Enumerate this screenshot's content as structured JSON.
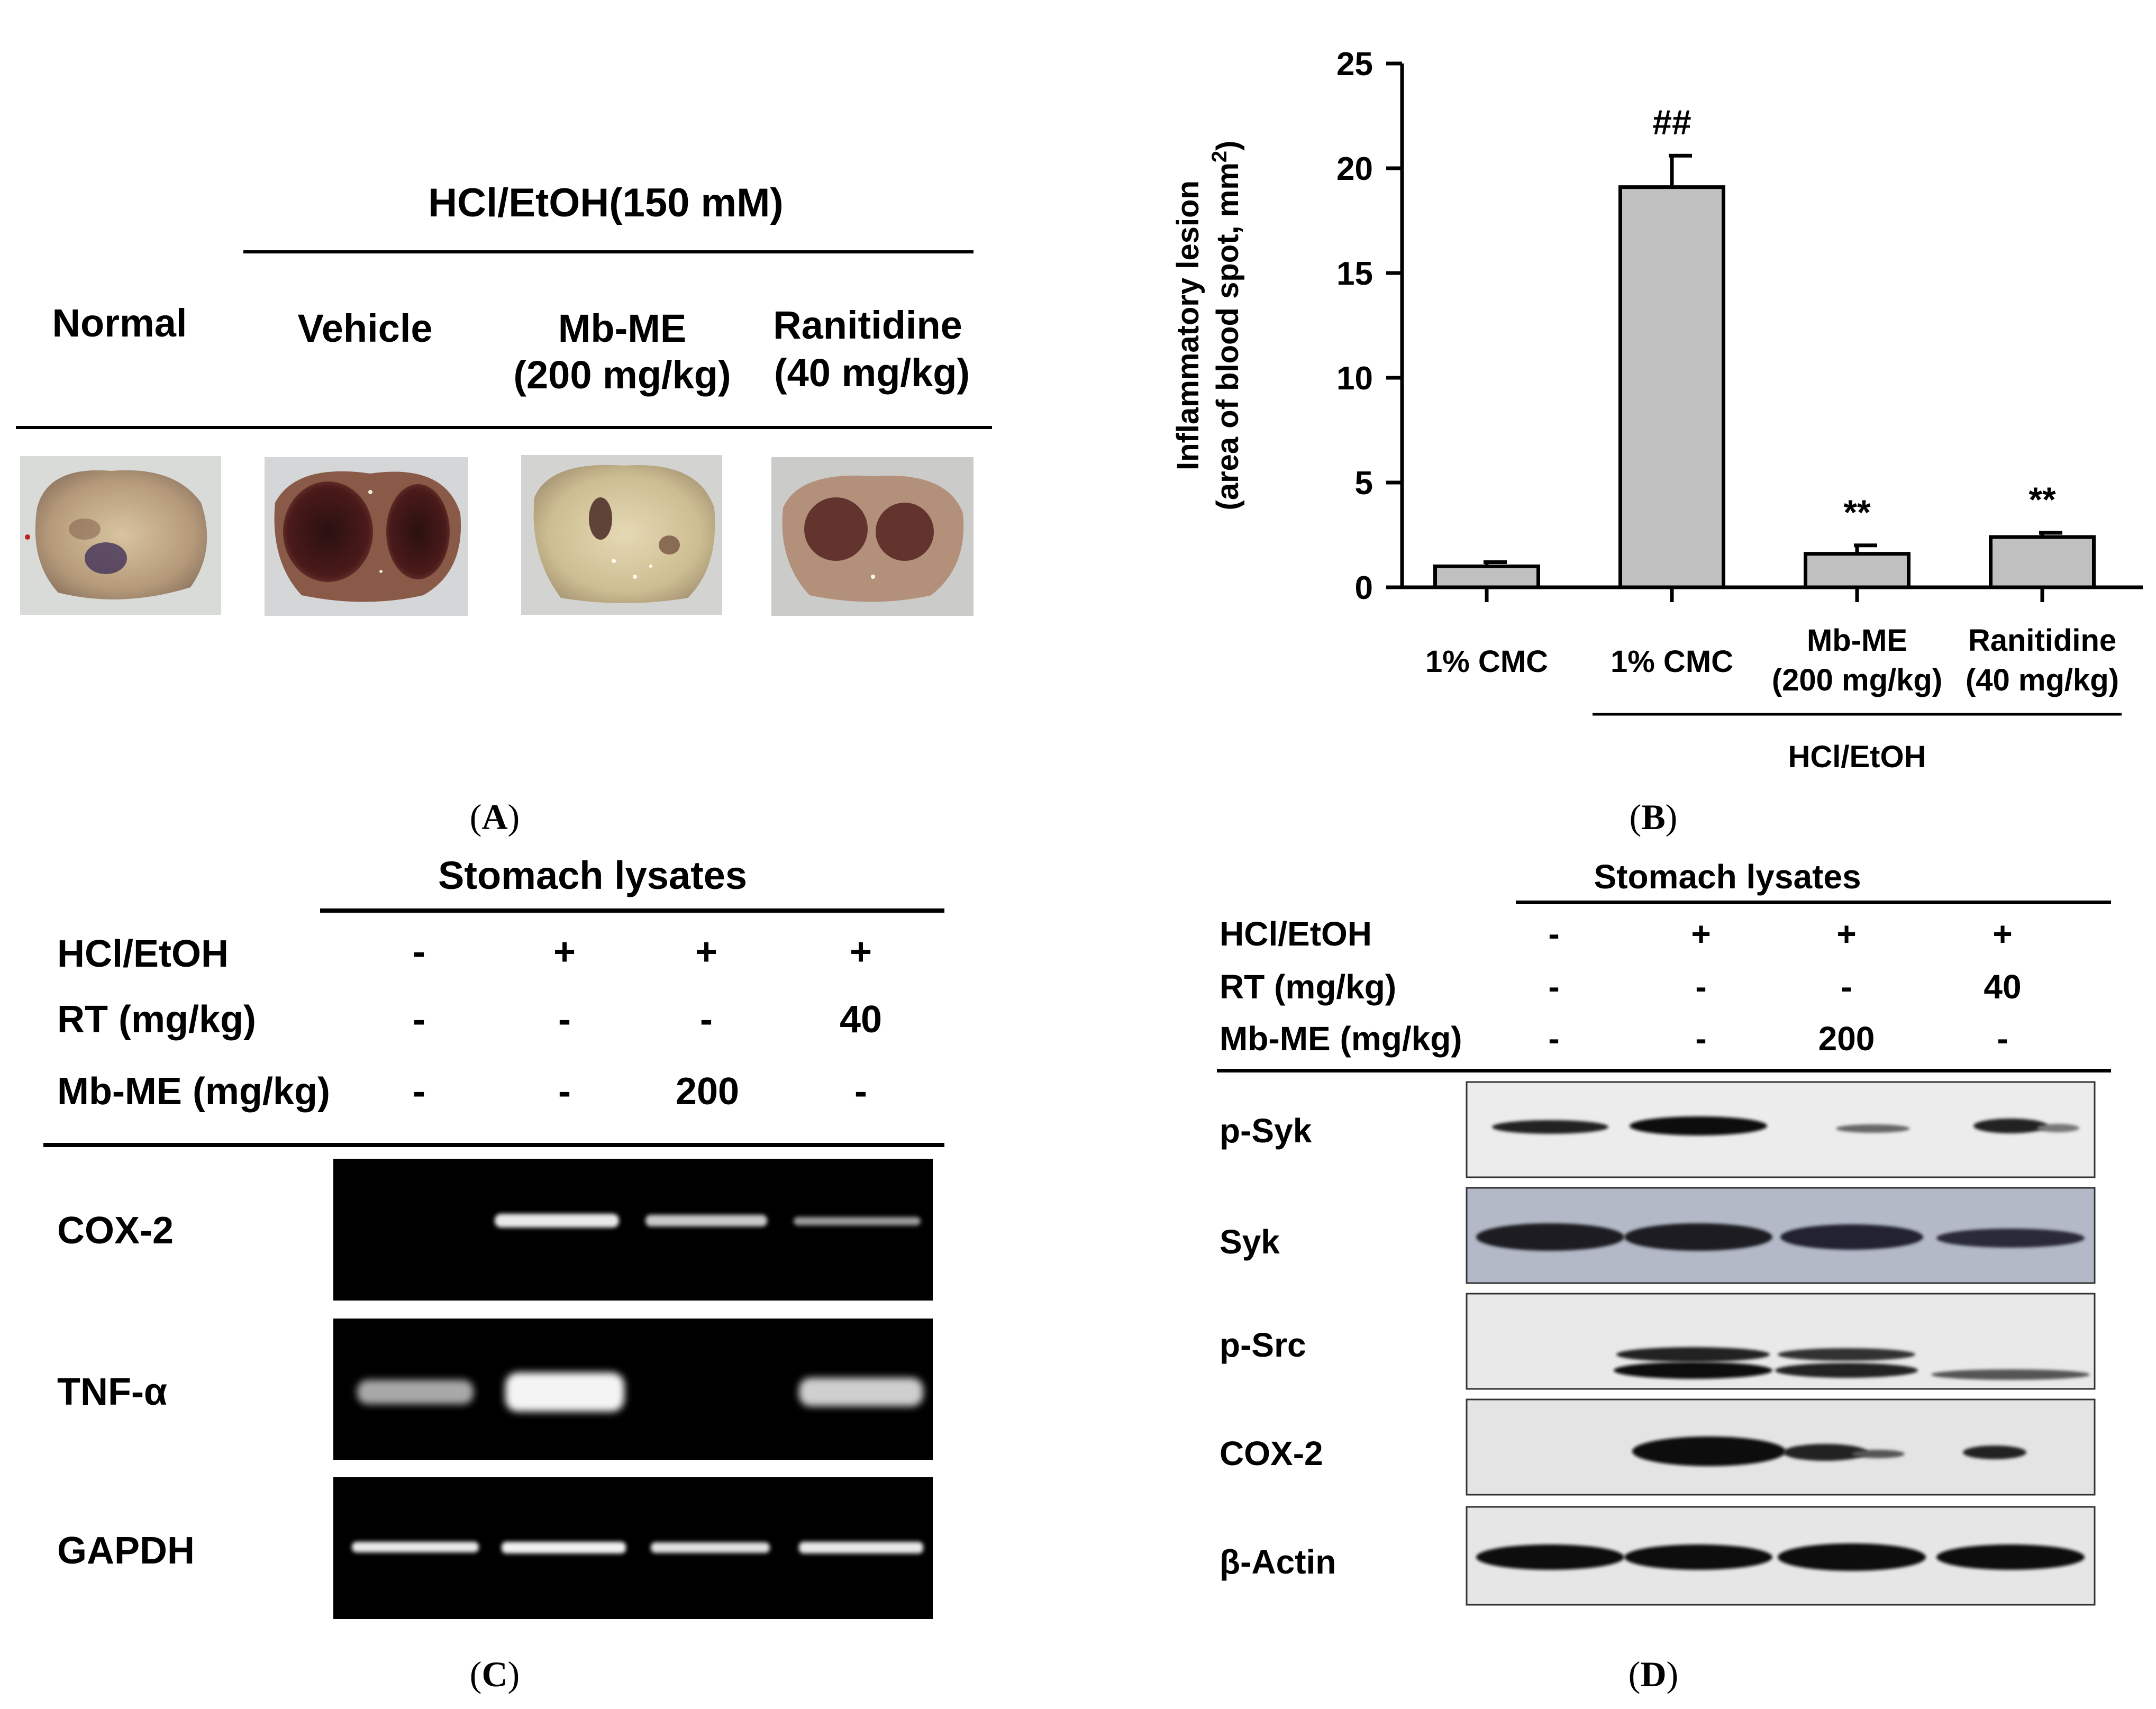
{
  "panel_labels": [
    "A",
    "B",
    "C",
    "D"
  ],
  "panel_a": {
    "header": "HCl/EtOH(150 mM)",
    "groups": [
      {
        "line1": "Normal",
        "line2": ""
      },
      {
        "line1": "Vehicle",
        "line2": ""
      },
      {
        "line1": "Mb-ME",
        "line2": "(200 mg/kg)"
      },
      {
        "line1": "Ranitidine",
        "line2": "(40 mg/kg)"
      }
    ]
  },
  "chart_data": {
    "type": "bar",
    "categories": [
      "1% CMC",
      "1% CMC",
      "Mb-ME (200 mg/kg)",
      "Ranitidine (40 mg/kg)"
    ],
    "category_lines": [
      [
        "1% CMC",
        ""
      ],
      [
        "1% CMC",
        ""
      ],
      [
        "Mb-ME",
        "(200 mg/kg)"
      ],
      [
        "Ranitidine",
        "(40 mg/kg)"
      ]
    ],
    "values": [
      1.0,
      19.1,
      1.6,
      2.4
    ],
    "errors": [
      0.2,
      1.5,
      0.4,
      0.2
    ],
    "annotations": [
      "",
      "##",
      "**",
      "**"
    ],
    "ylabel_line1": "Inflammatory lesion",
    "ylabel_line2": "(area of blood spot, mm",
    "ylabel_sup": "2",
    "ylabel_end": ")",
    "yticks": [
      0,
      5,
      10,
      15,
      20,
      25
    ],
    "ylim": [
      0,
      25
    ],
    "group_label": "HCl/EtOH",
    "bar_color": "#c0c0c0"
  },
  "panel_c": {
    "header": "Stomach lysates",
    "treatments": [
      {
        "label": "HCl/EtOH",
        "values": [
          "-",
          "+",
          "+",
          "+"
        ]
      },
      {
        "label": "RT (mg/kg)",
        "values": [
          "-",
          "-",
          "-",
          "40"
        ]
      },
      {
        "label": "Mb-ME (mg/kg)",
        "values": [
          "-",
          "-",
          "200",
          "-"
        ]
      }
    ],
    "genes": [
      "COX-2",
      "TNF-α",
      "GAPDH"
    ]
  },
  "panel_d": {
    "header": "Stomach lysates",
    "treatments": [
      {
        "label": "HCl/EtOH",
        "values": [
          "-",
          "+",
          "+",
          "+"
        ]
      },
      {
        "label": "RT (mg/kg)",
        "values": [
          "-",
          "-",
          "-",
          "40"
        ]
      },
      {
        "label": "Mb-ME (mg/kg)",
        "values": [
          "-",
          "-",
          "200",
          "-"
        ]
      }
    ],
    "proteins": [
      "p-Syk",
      "Syk",
      "p-Src",
      "COX-2",
      "β-Actin"
    ]
  }
}
